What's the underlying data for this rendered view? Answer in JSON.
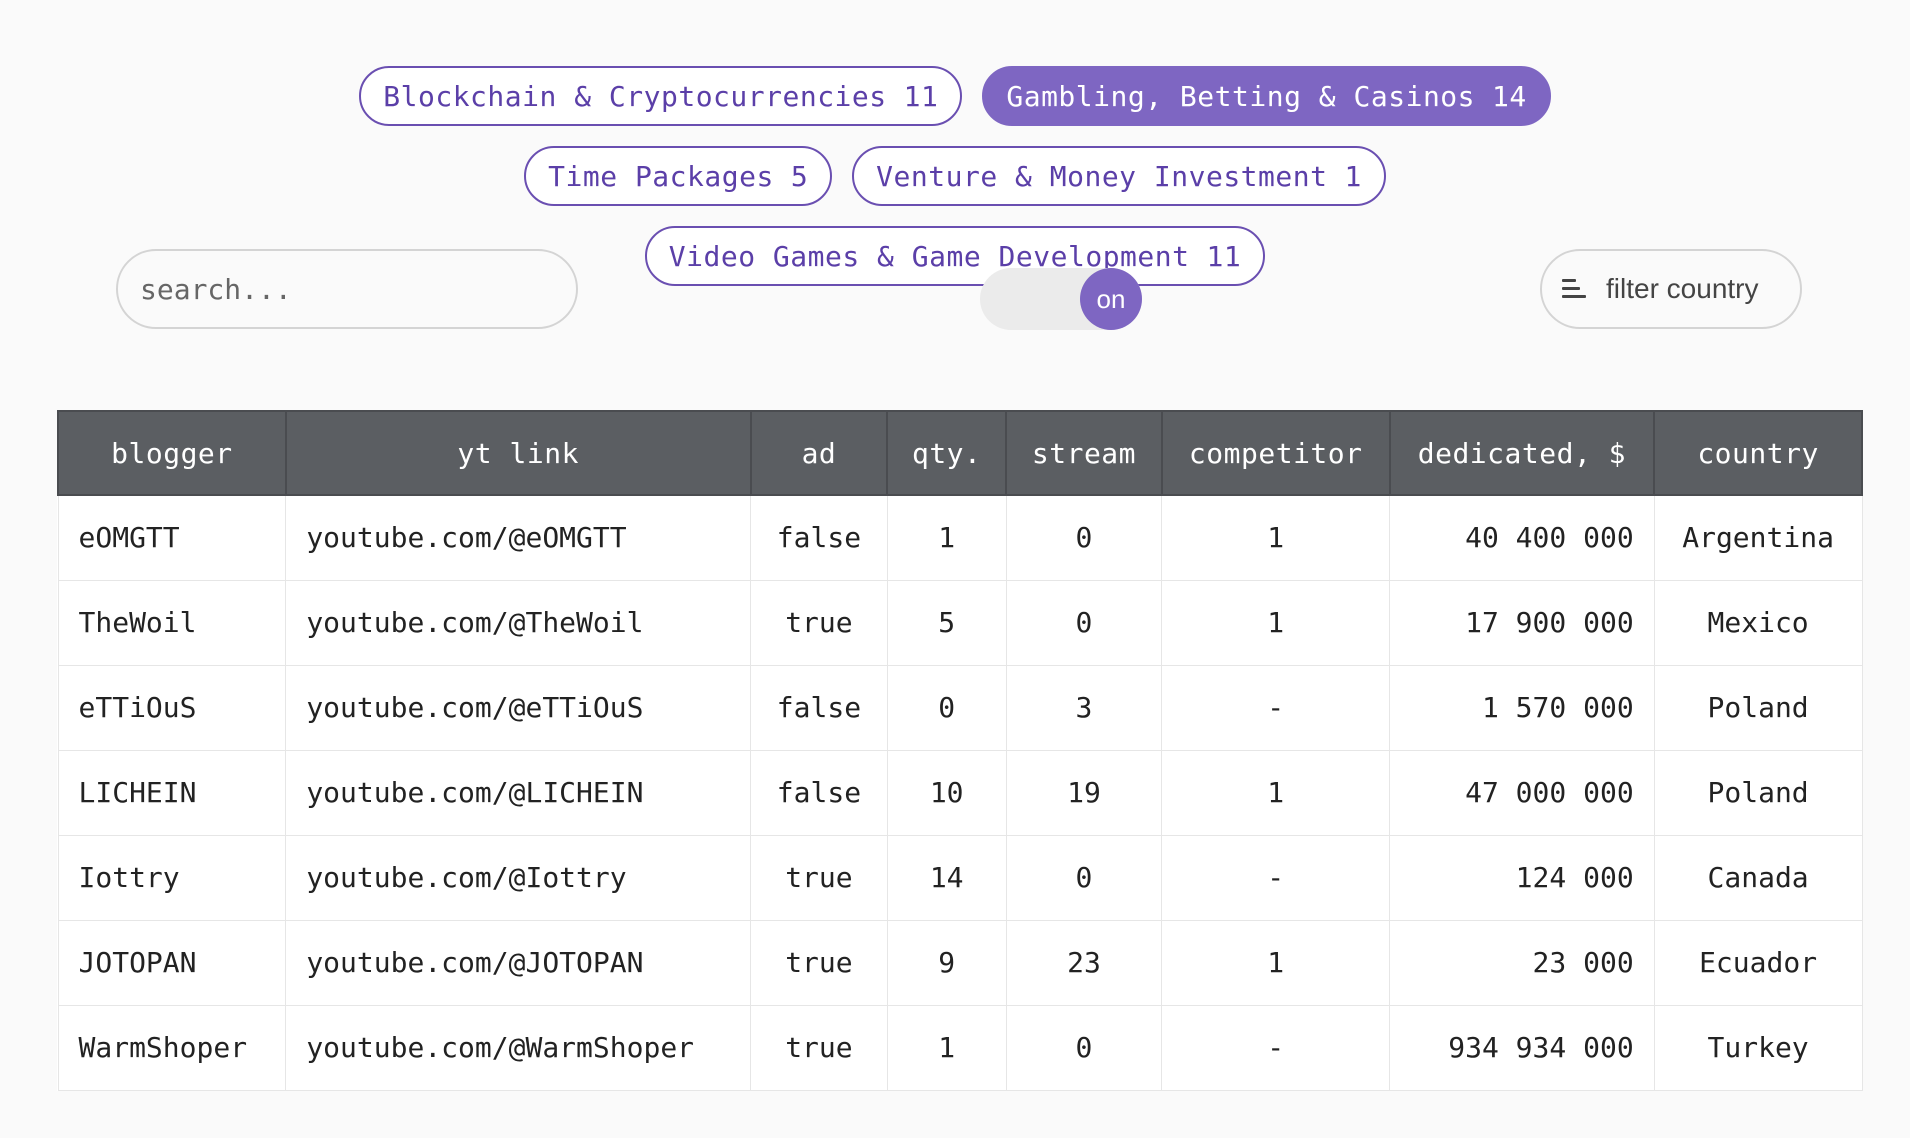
{
  "categories": [
    {
      "label": "Blockchain & Cryptocurrencies",
      "count": "11",
      "active": false
    },
    {
      "label": "Gambling, Betting & Casinos",
      "count": "14",
      "active": true
    },
    {
      "label": "Time Packages",
      "count": "5",
      "active": false
    },
    {
      "label": "Venture & Money Investment",
      "count": "1",
      "active": false
    },
    {
      "label": "Video Games & Game Development",
      "count": "11",
      "active": false
    }
  ],
  "search": {
    "placeholder": "search...",
    "value": ""
  },
  "toggle": {
    "label": "on",
    "state": true
  },
  "filter": {
    "label": "filter country",
    "icon": "filter-lines-icon"
  },
  "colors": {
    "accent": "#7e66c2",
    "header_bg": "#5b5e62"
  },
  "table": {
    "headers": [
      "blogger",
      "yt link",
      "ad",
      "qty.",
      "stream",
      "competitor",
      "dedicated, $",
      "country"
    ],
    "rows": [
      [
        "eOMGTT",
        "youtube.com/@eOMGTT",
        "false",
        "1",
        "0",
        "1",
        "40 400 000",
        "Argentina"
      ],
      [
        "TheWoil",
        "youtube.com/@TheWoil",
        "true",
        "5",
        "0",
        "1",
        "17 900 000",
        "Mexico"
      ],
      [
        "eTTiOuS",
        "youtube.com/@eTTiOuS",
        "false",
        "0",
        "3",
        "-",
        "1 570 000",
        "Poland"
      ],
      [
        "LICHEIN",
        "youtube.com/@LICHEIN",
        "false",
        "10",
        "19",
        "1",
        "47 000 000",
        "Poland"
      ],
      [
        "Iottry",
        "youtube.com/@Iottry",
        "true",
        "14",
        "0",
        "-",
        "124 000",
        "Canada"
      ],
      [
        "JOTOPAN",
        "youtube.com/@JOTOPAN",
        "true",
        "9",
        "23",
        "1",
        "23 000",
        "Ecuador"
      ],
      [
        "WarmShoper",
        "youtube.com/@WarmShoper",
        "true",
        "1",
        "0",
        "-",
        "934 934 000",
        "Turkey"
      ]
    ]
  }
}
